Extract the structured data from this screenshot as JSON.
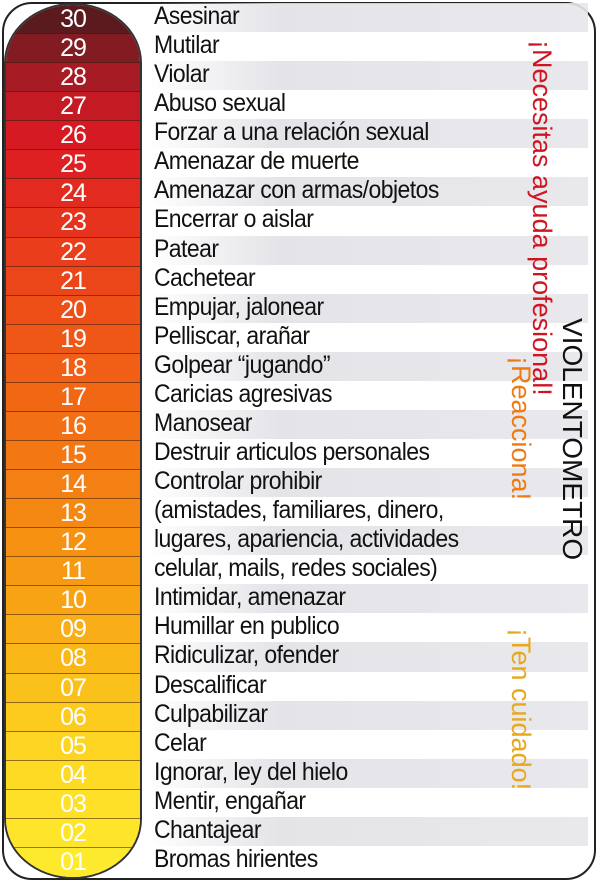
{
  "title": "VIOLENTOMETRO",
  "zones": {
    "red": "¡Necesitas ayuda profesional!",
    "orange": "¡Reacciona!",
    "yellow": "¡Ten cuidado!"
  },
  "colors": {
    "red_zone": "#d01522",
    "orange_zone": "#ef7a12",
    "yellow_zone": "#e7a81c",
    "title": "#111111"
  },
  "levels": [
    {
      "number": "30",
      "color": "#5a1a1e"
    },
    {
      "number": "29",
      "color": "#821c22"
    },
    {
      "number": "28",
      "color": "#a71c24"
    },
    {
      "number": "27",
      "color": "#c41a24"
    },
    {
      "number": "26",
      "color": "#d51a24"
    },
    {
      "number": "25",
      "color": "#df2023"
    },
    {
      "number": "24",
      "color": "#e32a20"
    },
    {
      "number": "23",
      "color": "#e6331d"
    },
    {
      "number": "22",
      "color": "#e93d1b"
    },
    {
      "number": "21",
      "color": "#eb4619"
    },
    {
      "number": "20",
      "color": "#ed4f17"
    },
    {
      "number": "19",
      "color": "#ee5716"
    },
    {
      "number": "18",
      "color": "#f05f15"
    },
    {
      "number": "17",
      "color": "#f16714"
    },
    {
      "number": "16",
      "color": "#f26f13"
    },
    {
      "number": "15",
      "color": "#f37712"
    },
    {
      "number": "14",
      "color": "#f47f12"
    },
    {
      "number": "13",
      "color": "#f58812"
    },
    {
      "number": "12",
      "color": "#f69112"
    },
    {
      "number": "11",
      "color": "#f79a13"
    },
    {
      "number": "10",
      "color": "#f8a314"
    },
    {
      "number": "09",
      "color": "#f9ad16"
    },
    {
      "number": "08",
      "color": "#fab718"
    },
    {
      "number": "07",
      "color": "#fbc11b"
    },
    {
      "number": "06",
      "color": "#fccb1e"
    },
    {
      "number": "05",
      "color": "#fdd421"
    },
    {
      "number": "04",
      "color": "#fdda24"
    },
    {
      "number": "03",
      "color": "#fde027"
    },
    {
      "number": "02",
      "color": "#fee52a"
    },
    {
      "number": "01",
      "color": "#feea2d"
    }
  ],
  "items": [
    "Asesinar",
    "Mutilar",
    "Violar",
    "Abuso sexual",
    "Forzar a una relación sexual",
    "Amenazar de muerte",
    "Amenazar con armas/objetos",
    "Encerrar o aislar",
    "Patear",
    "Cachetear",
    "Empujar, jalonear",
    "Pelliscar, arañar",
    "Golpear  “jugando”",
    "Caricias agresivas",
    "Manosear",
    "Destruir articulos personales",
    "Controlar prohibir",
    "(amistades, familiares, dinero,",
    "lugares, apariencia, actividades",
    "celular, mails, redes sociales)",
    "Intimidar, amenazar",
    "Humillar en publico",
    "Ridiculizar, ofender",
    "Descalificar",
    "Culpabilizar",
    "Celar",
    "Ignorar, ley del hielo",
    "Mentir, engañar",
    "Chantajear",
    "Bromas hirientes"
  ]
}
